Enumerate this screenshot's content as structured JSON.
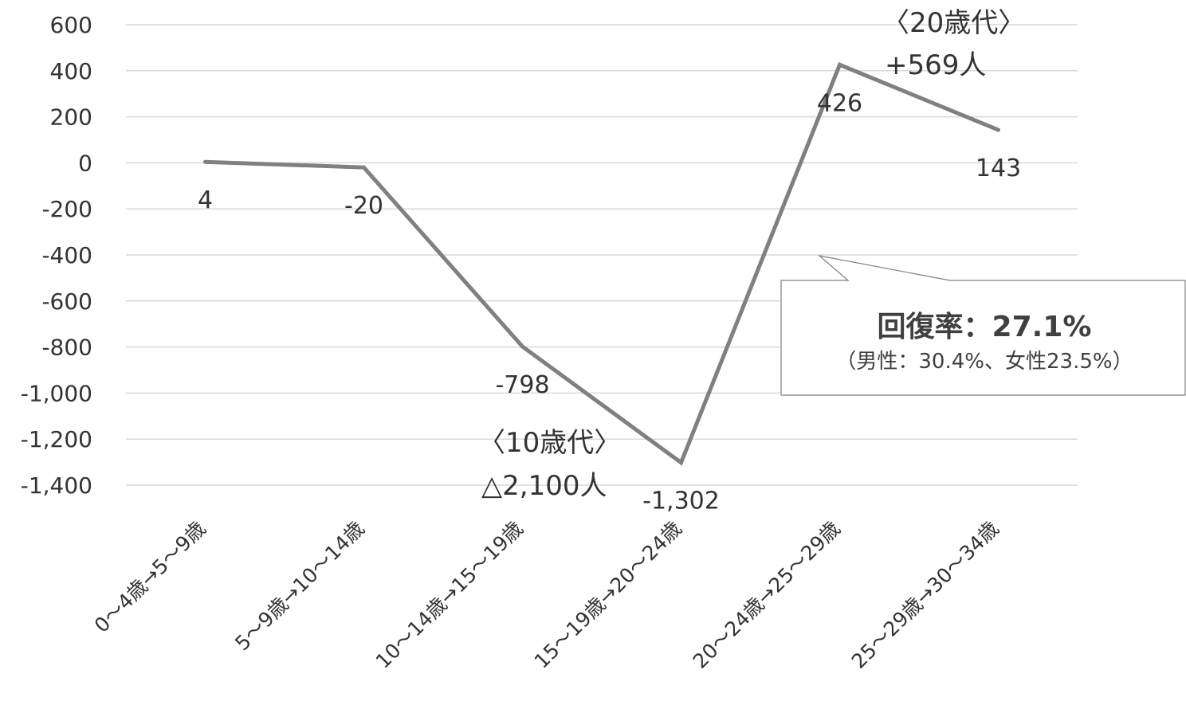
{
  "chart_data": {
    "type": "line",
    "categories": [
      "0～4歳→5～9歳",
      "5～9歳→10～14歳",
      "10～14歳→15～19歳",
      "15～19歳→20～24歳",
      "20～24歳→25～29歳",
      "25～29歳→30～34歳"
    ],
    "series": [
      {
        "values": [
          4,
          -20,
          -798,
          -1302,
          426,
          143
        ]
      }
    ],
    "data_labels": [
      "4",
      "-20",
      "-798",
      "-1,302",
      "426",
      "143"
    ],
    "ylim": [
      -1400,
      600
    ],
    "yticks": [
      600,
      400,
      200,
      0,
      -200,
      -400,
      -600,
      -800,
      -1000,
      -1200,
      -1400
    ],
    "ytick_labels": [
      "600",
      "400",
      "200",
      "0",
      "-200",
      "-400",
      "-600",
      "-800",
      "-1,000",
      "-1,200",
      "-1,400"
    ],
    "grid": true,
    "line_color": "#808080",
    "annotations": [
      {
        "line1": "〈20歳代〉",
        "line2": "+569人"
      },
      {
        "line1": "〈10歳代〉",
        "line2": "△2,100人"
      }
    ],
    "callout": {
      "title": "回復率：27.1%",
      "subtitle": "（男性：30.4%、女性23.5%）"
    }
  }
}
